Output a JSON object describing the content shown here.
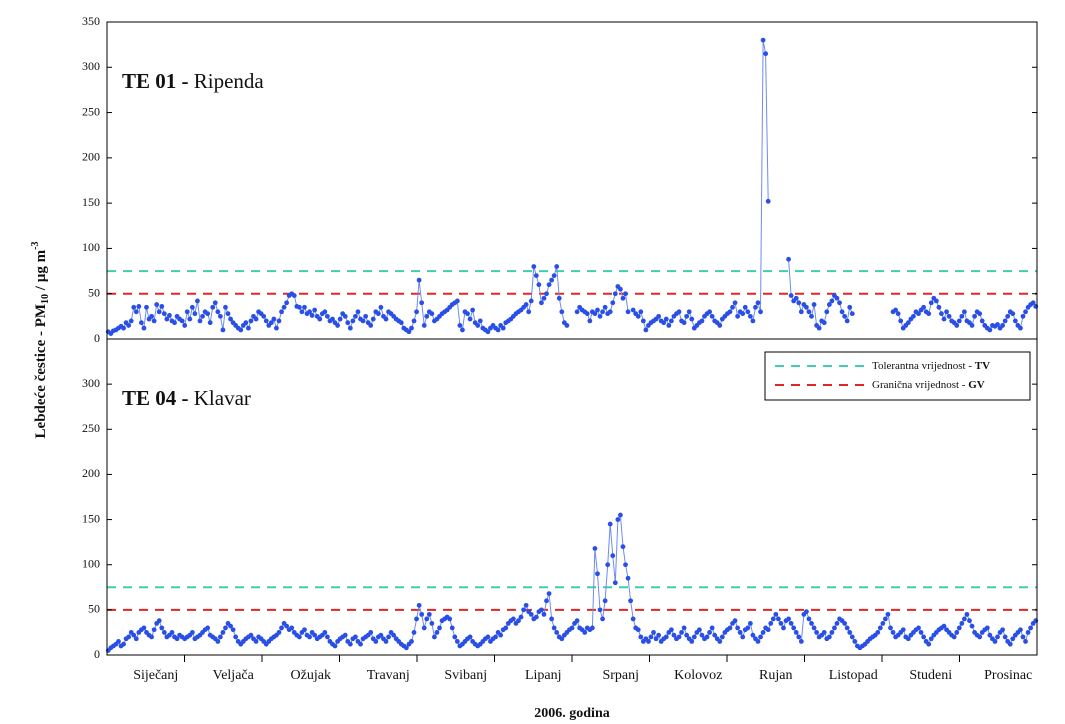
{
  "chart_data": {
    "type": "line",
    "ylabel": [
      "Lebdeće čestice - PM",
      "10",
      " / µg m",
      "-3"
    ],
    "xlabel": "2006. godina",
    "categories": [
      "Siječanj",
      "Veljača",
      "Ožujak",
      "Travanj",
      "Svibanj",
      "Lipanj",
      "Srpanj",
      "Kolovoz",
      "Rujan",
      "Listopad",
      "Studeni",
      "Prosinac"
    ],
    "reference_lines": [
      {
        "name": "Tolerantna vrijednost - ",
        "name_bold": "TV",
        "value": 75,
        "color": "#3fcfb0"
      },
      {
        "name": "Granična vrijednost - ",
        "name_bold": "GV",
        "value": 50,
        "color": "#e02828"
      }
    ],
    "panels": [
      {
        "title_bold": "TE 01 - ",
        "title": "Ripenda",
        "ylim": [
          0,
          350
        ],
        "yticks": [
          0,
          50,
          100,
          150,
          200,
          250,
          300,
          350
        ],
        "series": [
          {
            "color": "#2a4fe6",
            "values": [
              8,
              6,
              9,
              10,
              12,
              14,
              12,
              18,
              15,
              20,
              35,
              30,
              36,
              18,
              12,
              35,
              22,
              25,
              20,
              38,
              30,
              36,
              28,
              22,
              26,
              20,
              18,
              25,
              22,
              20,
              15,
              30,
              22,
              35,
              28,
              42,
              20,
              25,
              30,
              28,
              18,
              35,
              40,
              30,
              25,
              10,
              35,
              28,
              22,
              18,
              15,
              12,
              10,
              15,
              18,
              12,
              20,
              25,
              22,
              30,
              28,
              25,
              20,
              15,
              18,
              22,
              12,
              20,
              30,
              35,
              40,
              48,
              50,
              48,
              36,
              35,
              30,
              35,
              28,
              30,
              26,
              32,
              25,
              22,
              28,
              30,
              25,
              20,
              22,
              18,
              15,
              22,
              28,
              25,
              18,
              12,
              20,
              25,
              30,
              22,
              20,
              25,
              18,
              15,
              22,
              30,
              28,
              35,
              25,
              22,
              30,
              28,
              25,
              22,
              20,
              18,
              12,
              10,
              8,
              12,
              20,
              30,
              65,
              40,
              15,
              25,
              30,
              28,
              20,
              22,
              25,
              28,
              30,
              32,
              35,
              38,
              40,
              42,
              15,
              10,
              30,
              28,
              22,
              32,
              18,
              15,
              20,
              12,
              10,
              8,
              12,
              15,
              12,
              10,
              15,
              12,
              18,
              20,
              22,
              25,
              28,
              30,
              32,
              35,
              38,
              30,
              42,
              80,
              70,
              60,
              40,
              45,
              50,
              60,
              65,
              70,
              80,
              45,
              30,
              18,
              15,
              null,
              null,
              null,
              30,
              35,
              32,
              30,
              28,
              20,
              30,
              28,
              32,
              25,
              30,
              35,
              28,
              30,
              40,
              50,
              58,
              55,
              45,
              50,
              30,
              null,
              32,
              28,
              25,
              30,
              20,
              10,
              15,
              18,
              20,
              22,
              25,
              20,
              18,
              22,
              15,
              20,
              25,
              28,
              30,
              20,
              18,
              25,
              30,
              22,
              12,
              15,
              18,
              20,
              25,
              28,
              30,
              25,
              20,
              18,
              15,
              22,
              25,
              28,
              30,
              35,
              40,
              25,
              30,
              28,
              35,
              30,
              25,
              20,
              35,
              40,
              30,
              330,
              315,
              152,
              null,
              null,
              null,
              null,
              null,
              null,
              null,
              88,
              48,
              42,
              45,
              40,
              30,
              38,
              35,
              30,
              25,
              38,
              15,
              12,
              20,
              18,
              30,
              38,
              42,
              48,
              45,
              40,
              30,
              25,
              20,
              35,
              28,
              null,
              null,
              null,
              null,
              null,
              null,
              null,
              null,
              null,
              null,
              null,
              null,
              null,
              null,
              null,
              30,
              32,
              28,
              20,
              12,
              15,
              18,
              22,
              25,
              30,
              28,
              32,
              35,
              30,
              28,
              40,
              45,
              42,
              35,
              28,
              22,
              30,
              25,
              20,
              18,
              15,
              20,
              25,
              30,
              20,
              18,
              15,
              25,
              30,
              28,
              20,
              15,
              12,
              10,
              15,
              14,
              16,
              12,
              15,
              20,
              25,
              30,
              28,
              20,
              15,
              12,
              25,
              30,
              35,
              38,
              40,
              36
            ]
          }
        ]
      },
      {
        "title_bold": "TE 04 - ",
        "title": "Klavar",
        "ylim": [
          0,
          350
        ],
        "yticks": [
          0,
          50,
          100,
          150,
          200,
          250,
          300
        ],
        "series": [
          {
            "color": "#2a4fe6",
            "values": [
              5,
              8,
              10,
              12,
              15,
              10,
              12,
              18,
              20,
              25,
              22,
              18,
              25,
              28,
              30,
              25,
              22,
              20,
              28,
              35,
              38,
              30,
              25,
              20,
              22,
              25,
              20,
              18,
              22,
              20,
              18,
              20,
              22,
              25,
              18,
              20,
              22,
              25,
              28,
              30,
              22,
              20,
              18,
              15,
              20,
              25,
              30,
              35,
              32,
              28,
              20,
              15,
              12,
              15,
              18,
              20,
              22,
              18,
              15,
              20,
              18,
              15,
              12,
              15,
              18,
              20,
              22,
              25,
              30,
              35,
              32,
              28,
              30,
              25,
              22,
              20,
              25,
              28,
              22,
              20,
              25,
              22,
              18,
              20,
              22,
              25,
              20,
              15,
              12,
              10,
              15,
              18,
              20,
              22,
              15,
              12,
              18,
              20,
              15,
              12,
              18,
              20,
              22,
              25,
              18,
              15,
              20,
              22,
              18,
              15,
              20,
              25,
              22,
              18,
              15,
              12,
              10,
              8,
              12,
              15,
              25,
              40,
              55,
              45,
              30,
              40,
              45,
              35,
              20,
              25,
              30,
              38,
              40,
              42,
              40,
              30,
              20,
              15,
              10,
              12,
              15,
              18,
              20,
              15,
              12,
              10,
              12,
              15,
              18,
              20,
              15,
              18,
              20,
              25,
              22,
              28,
              30,
              35,
              38,
              40,
              35,
              38,
              42,
              50,
              55,
              48,
              45,
              40,
              42,
              48,
              50,
              45,
              60,
              68,
              40,
              30,
              25,
              20,
              18,
              22,
              25,
              28,
              30,
              35,
              38,
              30,
              28,
              25,
              30,
              28,
              30,
              118,
              90,
              50,
              40,
              60,
              100,
              145,
              110,
              80,
              150,
              155,
              120,
              100,
              85,
              60,
              40,
              30,
              28,
              20,
              15,
              18,
              15,
              20,
              25,
              18,
              22,
              15,
              18,
              20,
              25,
              28,
              22,
              18,
              20,
              25,
              30,
              22,
              18,
              15,
              20,
              25,
              28,
              22,
              18,
              20,
              25,
              30,
              22,
              18,
              15,
              20,
              25,
              28,
              30,
              35,
              38,
              30,
              25,
              20,
              28,
              30,
              35,
              22,
              18,
              15,
              20,
              25,
              30,
              28,
              35,
              40,
              45,
              40,
              35,
              30,
              38,
              40,
              35,
              30,
              25,
              20,
              15,
              45,
              48,
              40,
              35,
              30,
              25,
              20,
              22,
              25,
              18,
              20,
              25,
              30,
              35,
              40,
              38,
              35,
              30,
              25,
              20,
              15,
              10,
              8,
              10,
              12,
              15,
              18,
              20,
              22,
              25,
              30,
              35,
              40,
              45,
              30,
              25,
              20,
              22,
              25,
              28,
              20,
              18,
              22,
              25,
              28,
              30,
              25,
              20,
              15,
              12,
              18,
              22,
              25,
              28,
              30,
              32,
              28,
              25,
              22,
              20,
              25,
              30,
              35,
              40,
              45,
              38,
              32,
              25,
              22,
              20,
              25,
              28,
              30,
              22,
              18,
              15,
              20,
              25,
              28,
              20,
              15,
              12,
              18,
              22,
              25,
              28,
              20,
              15,
              25,
              30,
              35,
              38
            ]
          }
        ]
      }
    ]
  }
}
